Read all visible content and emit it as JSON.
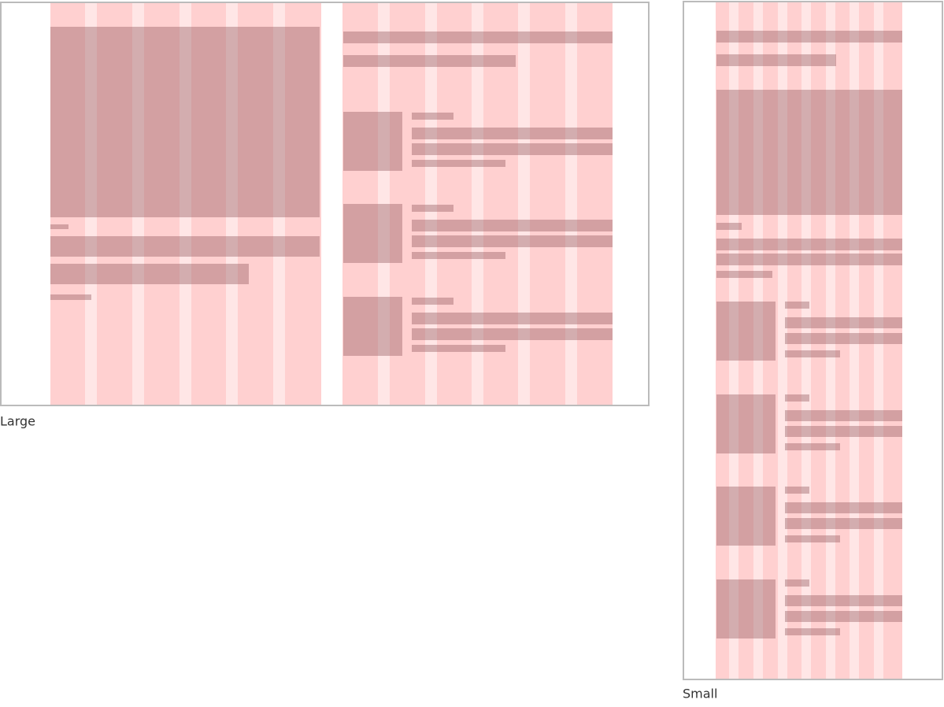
{
  "frames": [
    {
      "label": "Large"
    },
    {
      "label": "Small"
    }
  ]
}
